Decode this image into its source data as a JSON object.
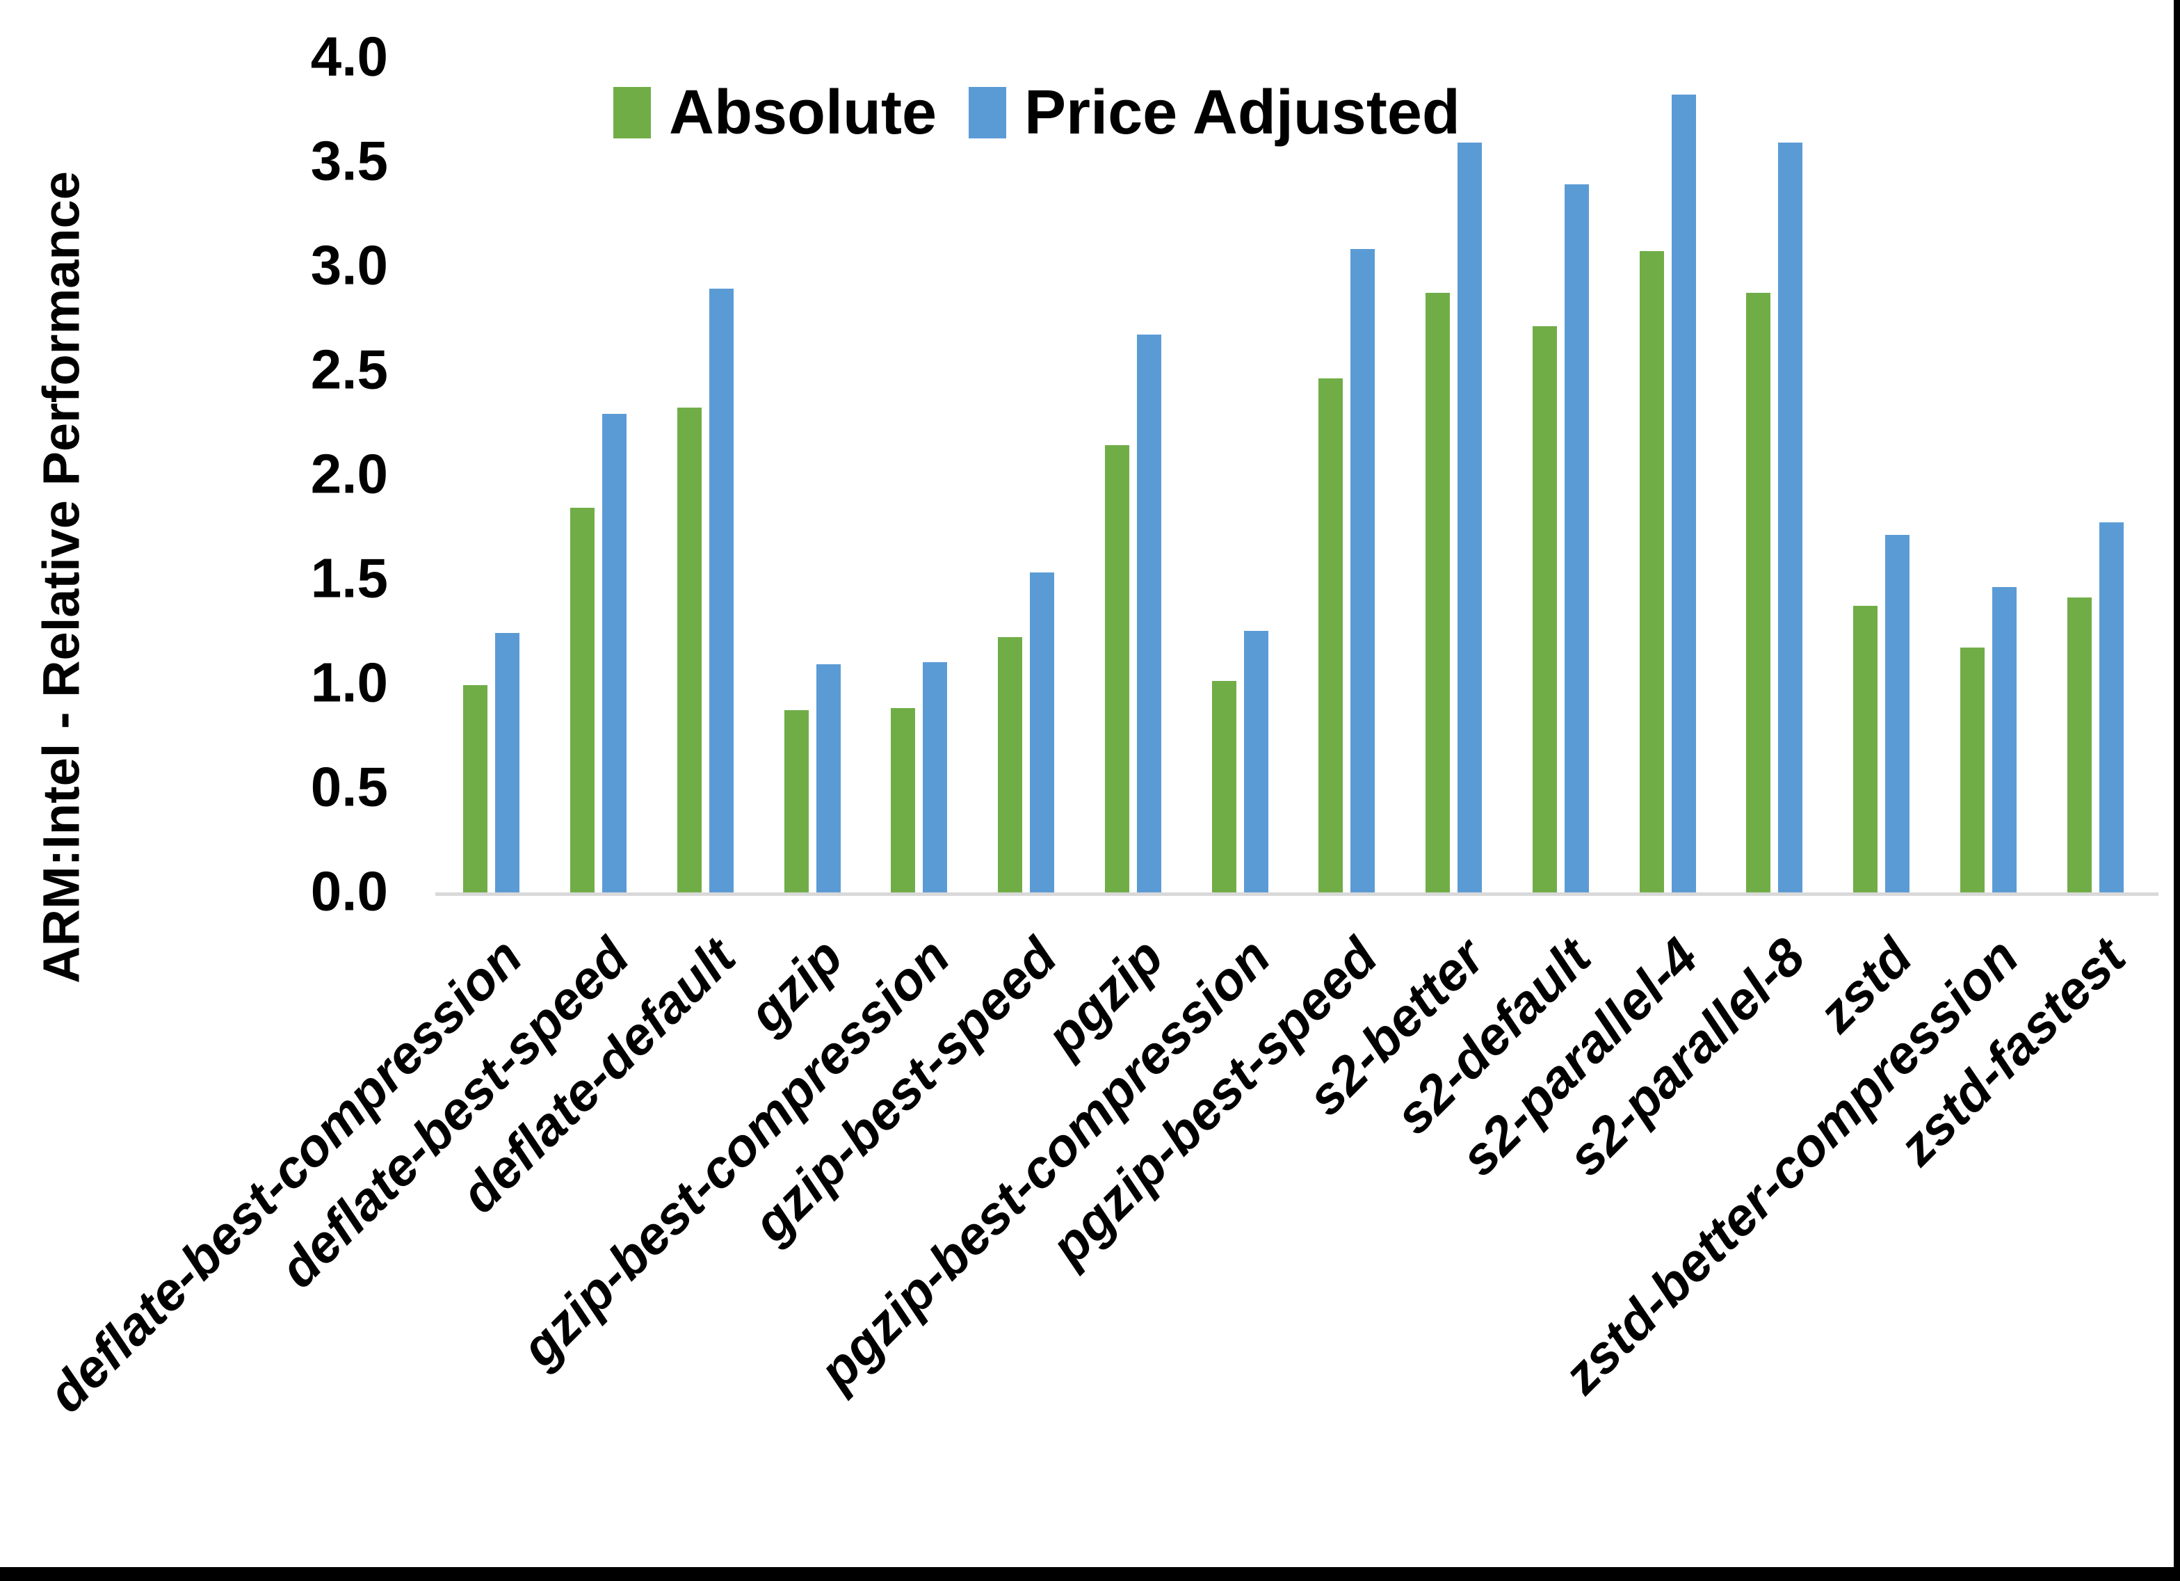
{
  "chart_data": {
    "type": "bar",
    "title": "",
    "xlabel": "",
    "ylabel": "ARM:Intel - Relative Performance",
    "ylim": [
      0.0,
      4.0
    ],
    "ytick_step": 0.5,
    "ytick_labels": [
      "0.0",
      "0.5",
      "1.0",
      "1.5",
      "2.0",
      "2.5",
      "3.0",
      "3.5",
      "4.0"
    ],
    "grid": false,
    "legend_position": "top-center",
    "categories": [
      "deflate-best-compression",
      "deflate-best-speed",
      "deflate-default",
      "gzip",
      "gzip-best-compression",
      "gzip-best-speed",
      "pgzip",
      "pgzip-best-compression",
      "pgzip-best-speed",
      "s2-better",
      "s2-default",
      "s2-parallel-4",
      "s2-parallel-8",
      "zstd",
      "zstd-better-compression",
      "zstd-fastest"
    ],
    "series": [
      {
        "name": "Absolute",
        "color": "#70AD47",
        "values": [
          1.0,
          1.85,
          2.33,
          0.88,
          0.89,
          1.23,
          2.15,
          1.02,
          2.47,
          2.88,
          2.72,
          3.08,
          2.88,
          1.38,
          1.18,
          1.42
        ]
      },
      {
        "name": "Price Adjusted",
        "color": "#5B9BD5",
        "values": [
          1.25,
          2.3,
          2.9,
          1.1,
          1.11,
          1.54,
          2.68,
          1.26,
          3.09,
          3.6,
          3.4,
          3.83,
          3.6,
          1.72,
          1.47,
          1.78
        ]
      }
    ]
  },
  "colors": {
    "background": "#FFFFFF",
    "axis_line": "#D9D9D9",
    "text": "#000000",
    "frame": "#000000"
  }
}
